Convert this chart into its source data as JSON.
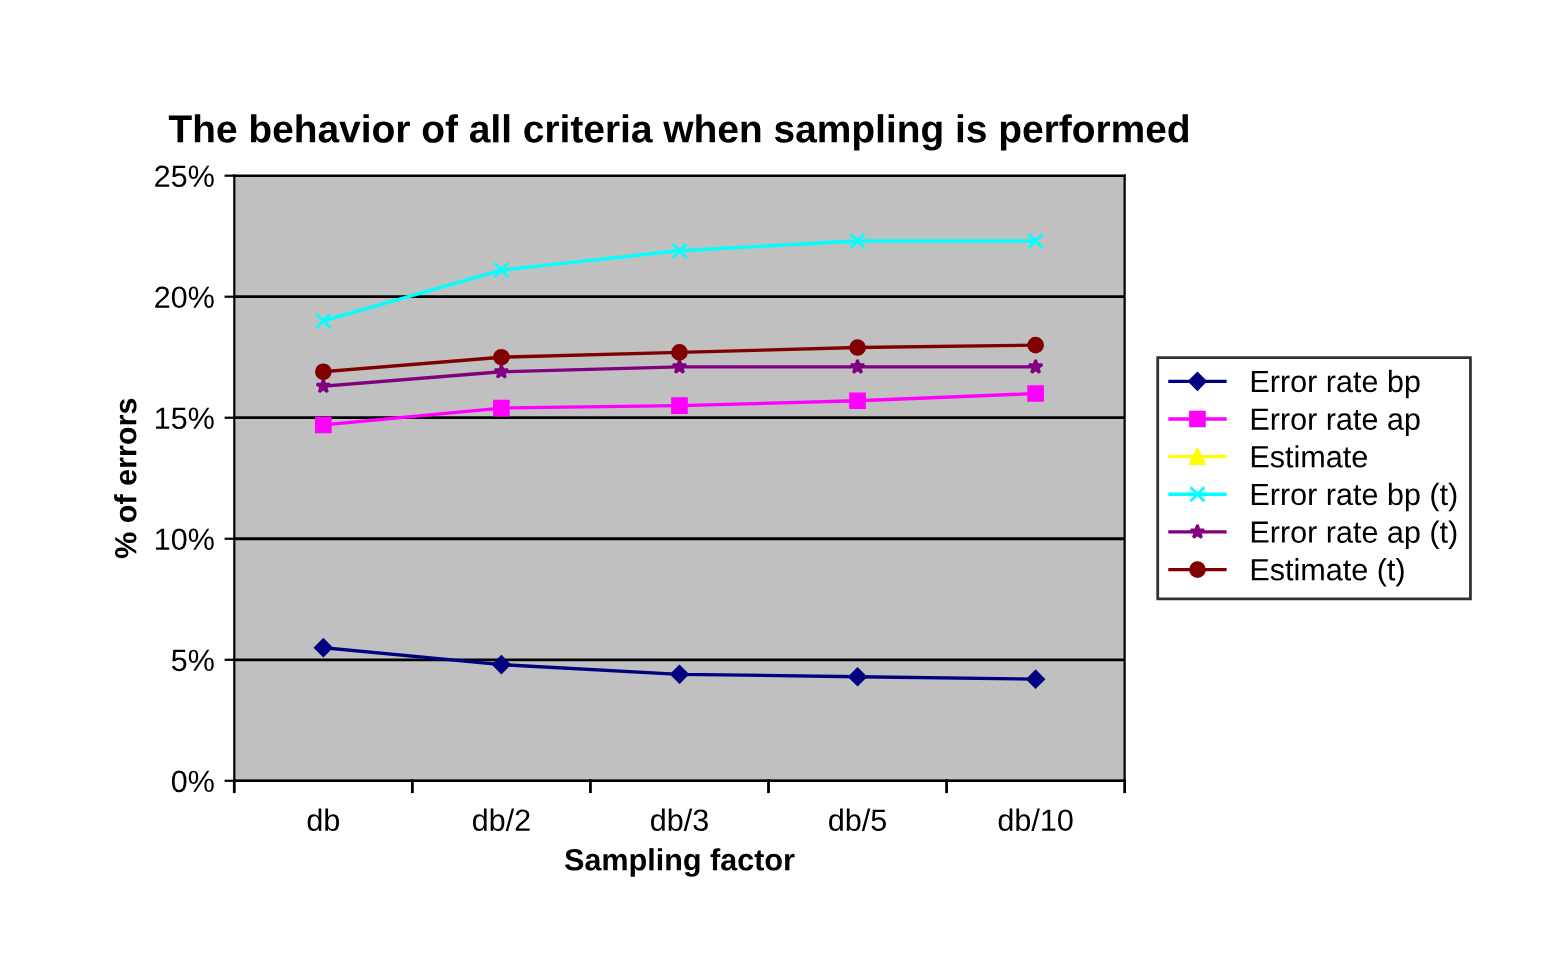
{
  "chart_data": {
    "type": "line",
    "title": "The behavior of all criteria when sampling is performed",
    "xlabel": "Sampling factor",
    "ylabel": "% of errors",
    "categories": [
      "db",
      "db/2",
      "db/3",
      "db/5",
      "db/10"
    ],
    "ylim": [
      0,
      25
    ],
    "yticks": [
      {
        "value": 0,
        "label": "0%"
      },
      {
        "value": 5,
        "label": "5%"
      },
      {
        "value": 10,
        "label": "10%"
      },
      {
        "value": 15,
        "label": "15%"
      },
      {
        "value": 20,
        "label": "20%"
      },
      {
        "value": 25,
        "label": "25%"
      }
    ],
    "grid": "y",
    "legend": "right",
    "series": [
      {
        "name": "Error rate bp",
        "color": "#000080",
        "marker": "diamond",
        "values": [
          5.5,
          4.8,
          4.4,
          4.3,
          4.2
        ]
      },
      {
        "name": "Error rate ap",
        "color": "#ff00ff",
        "marker": "square",
        "values": [
          14.7,
          15.4,
          15.5,
          15.7,
          16.0
        ]
      },
      {
        "name": "Estimate",
        "color": "#ffff00",
        "marker": "triangle",
        "values": [
          null,
          null,
          null,
          null,
          null
        ]
      },
      {
        "name": "Error rate bp (t)",
        "color": "#00ffff",
        "marker": "cross",
        "values": [
          19.0,
          21.1,
          21.9,
          22.3,
          22.3
        ]
      },
      {
        "name": "Error rate ap (t)",
        "color": "#800080",
        "marker": "star",
        "values": [
          16.3,
          16.9,
          17.1,
          17.1,
          17.1
        ]
      },
      {
        "name": "Estimate (t)",
        "color": "#800000",
        "marker": "circle",
        "values": [
          16.9,
          17.5,
          17.7,
          17.9,
          18.0
        ]
      }
    ]
  }
}
